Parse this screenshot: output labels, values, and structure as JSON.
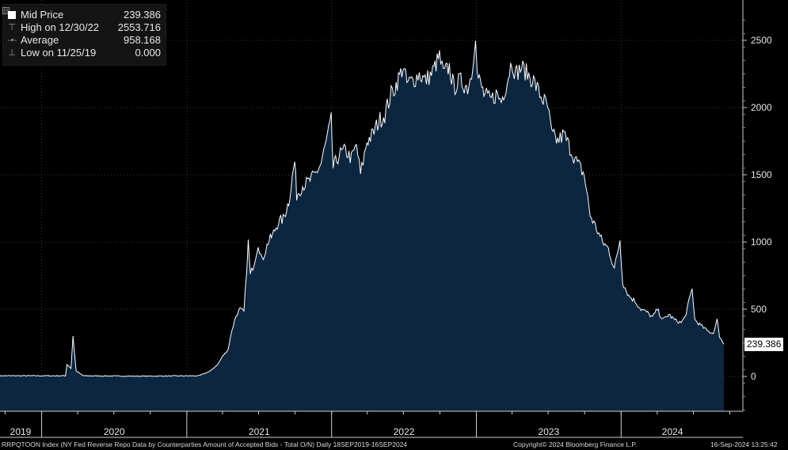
{
  "legend": {
    "rows": [
      {
        "label": "Mid Price",
        "value": "239.386"
      },
      {
        "label": "High on 12/30/22",
        "value": "2553.716"
      },
      {
        "label": "Average",
        "value": "958.168"
      },
      {
        "label": "Low on 11/25/19",
        "value": "0.000"
      }
    ],
    "expand_glyph": "⊟"
  },
  "last_value": "239.386",
  "footer": {
    "ticker_description": "RRPQTOON Index (NY Fed Reverse Repo Data by Counterparties Amount of Accepted Bids - Total O/N)  Daily 18SEP2019-16SEP2024",
    "copyright": "Copyright© 2024 Bloomberg Finance L.P.",
    "timestamp": "16-Sep-2024 13:25:42"
  },
  "colors": {
    "background": "#000000",
    "area_fill": "#0c2640",
    "line": "#ffffff",
    "grid": "#3a3a3a"
  },
  "chart_data": {
    "type": "area",
    "title": "",
    "xlabel": "",
    "ylabel": "",
    "ylim": [
      -250,
      2700
    ],
    "y_ticks": [
      0,
      500,
      1000,
      1500,
      2000,
      2500
    ],
    "x_tick_labels": [
      "2019",
      "2020",
      "2021",
      "2022",
      "2023",
      "2024"
    ],
    "x_range": [
      "2019-09-18",
      "2024-09-16"
    ],
    "grid": true,
    "series": [
      {
        "values_by_date": [
          [
            "2019-09-18",
            5
          ],
          [
            "2019-12-01",
            5
          ],
          [
            "2020-03-01",
            5
          ],
          [
            "2020-03-05",
            90
          ],
          [
            "2020-03-15",
            60
          ],
          [
            "2020-03-20",
            300
          ],
          [
            "2020-03-28",
            40
          ],
          [
            "2020-04-15",
            5
          ],
          [
            "2020-09-01",
            2
          ],
          [
            "2021-02-01",
            5
          ],
          [
            "2021-03-01",
            40
          ],
          [
            "2021-03-20",
            90
          ],
          [
            "2021-04-01",
            150
          ],
          [
            "2021-04-15",
            200
          ],
          [
            "2021-04-25",
            350
          ],
          [
            "2021-05-05",
            450
          ],
          [
            "2021-05-15",
            500
          ],
          [
            "2021-05-25",
            480
          ],
          [
            "2021-06-01",
            800
          ],
          [
            "2021-06-05",
            1000
          ],
          [
            "2021-06-10",
            750
          ],
          [
            "2021-06-20",
            850
          ],
          [
            "2021-06-30",
            990
          ],
          [
            "2021-07-10",
            860
          ],
          [
            "2021-07-25",
            1000
          ],
          [
            "2021-08-05",
            1050
          ],
          [
            "2021-08-20",
            1150
          ],
          [
            "2021-09-01",
            1170
          ],
          [
            "2021-09-15",
            1300
          ],
          [
            "2021-09-30",
            1600
          ],
          [
            "2021-10-05",
            1350
          ],
          [
            "2021-10-20",
            1420
          ],
          [
            "2021-11-05",
            1450
          ],
          [
            "2021-11-20",
            1500
          ],
          [
            "2021-12-05",
            1580
          ],
          [
            "2021-12-15",
            1700
          ],
          [
            "2021-12-31",
            1900
          ],
          [
            "2022-01-05",
            1550
          ],
          [
            "2022-01-20",
            1650
          ],
          [
            "2022-02-05",
            1680
          ],
          [
            "2022-02-20",
            1620
          ],
          [
            "2022-03-05",
            1720
          ],
          [
            "2022-03-15",
            1500
          ],
          [
            "2022-03-31",
            1750
          ],
          [
            "2022-04-15",
            1800
          ],
          [
            "2022-04-30",
            1900
          ],
          [
            "2022-05-15",
            1950
          ],
          [
            "2022-05-31",
            2100
          ],
          [
            "2022-06-10",
            2150
          ],
          [
            "2022-06-30",
            2300
          ],
          [
            "2022-07-10",
            2180
          ],
          [
            "2022-07-25",
            2200
          ],
          [
            "2022-08-10",
            2250
          ],
          [
            "2022-08-25",
            2200
          ],
          [
            "2022-09-10",
            2250
          ],
          [
            "2022-09-30",
            2380
          ],
          [
            "2022-10-10",
            2250
          ],
          [
            "2022-10-25",
            2300
          ],
          [
            "2022-11-05",
            2150
          ],
          [
            "2022-11-20",
            2200
          ],
          [
            "2022-12-10",
            2150
          ],
          [
            "2022-12-20",
            2250
          ],
          [
            "2022-12-30",
            2553
          ],
          [
            "2023-01-03",
            2250
          ],
          [
            "2023-01-20",
            2100
          ],
          [
            "2023-02-05",
            2050
          ],
          [
            "2023-02-20",
            2100
          ],
          [
            "2023-03-05",
            2050
          ],
          [
            "2023-03-20",
            2200
          ],
          [
            "2023-03-31",
            2350
          ],
          [
            "2023-04-10",
            2250
          ],
          [
            "2023-04-25",
            2300
          ],
          [
            "2023-05-10",
            2250
          ],
          [
            "2023-05-25",
            2200
          ],
          [
            "2023-06-10",
            2100
          ],
          [
            "2023-06-30",
            2000
          ],
          [
            "2023-07-10",
            1800
          ],
          [
            "2023-07-25",
            1750
          ],
          [
            "2023-08-10",
            1800
          ],
          [
            "2023-08-25",
            1700
          ],
          [
            "2023-09-10",
            1600
          ],
          [
            "2023-09-30",
            1500
          ],
          [
            "2023-10-15",
            1200
          ],
          [
            "2023-10-31",
            1100
          ],
          [
            "2023-11-15",
            1000
          ],
          [
            "2023-11-30",
            950
          ],
          [
            "2023-12-15",
            800
          ],
          [
            "2023-12-29",
            1018
          ],
          [
            "2024-01-05",
            700
          ],
          [
            "2024-01-20",
            600
          ],
          [
            "2024-02-05",
            560
          ],
          [
            "2024-02-20",
            500
          ],
          [
            "2024-03-05",
            480
          ],
          [
            "2024-03-20",
            440
          ],
          [
            "2024-04-01",
            500
          ],
          [
            "2024-04-15",
            420
          ],
          [
            "2024-04-30",
            460
          ],
          [
            "2024-05-15",
            420
          ],
          [
            "2024-05-31",
            400
          ],
          [
            "2024-06-10",
            440
          ],
          [
            "2024-06-28",
            650
          ],
          [
            "2024-07-05",
            420
          ],
          [
            "2024-07-20",
            380
          ],
          [
            "2024-08-05",
            340
          ],
          [
            "2024-08-20",
            320
          ],
          [
            "2024-08-30",
            420
          ],
          [
            "2024-09-05",
            300
          ],
          [
            "2024-09-16",
            239.386
          ]
        ]
      }
    ]
  }
}
